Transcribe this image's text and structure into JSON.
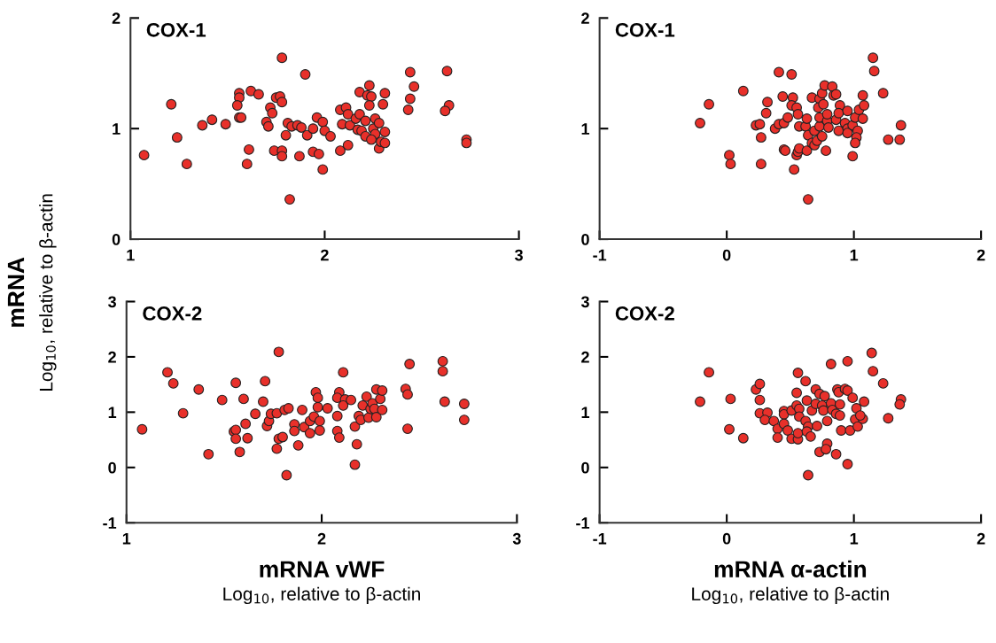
{
  "chart_data": [
    {
      "type": "scatter",
      "title": "COX-1",
      "ylabel": "mRNA\nLog$_{10}$, relative to β-actin",
      "marker": "circle",
      "grid": false,
      "xlim": [
        1,
        3
      ],
      "xticks": [
        1,
        2,
        3
      ],
      "ylim": [
        0,
        2
      ],
      "yticks": [
        0,
        1,
        2
      ],
      "series": [
        {
          "color": "#e8302a",
          "x": [
            1.07,
            1.21,
            1.24,
            1.29,
            1.37,
            1.42,
            1.49,
            1.56,
            1.56,
            1.55,
            1.56,
            1.57,
            1.61,
            1.6,
            1.62,
            1.66,
            1.7,
            1.71,
            1.72,
            1.73,
            1.75,
            1.77,
            1.78,
            1.78,
            1.74,
            1.78,
            1.78,
            1.8,
            1.81,
            1.83,
            1.86,
            1.88,
            1.87,
            1.82,
            1.9,
            1.91,
            1.94,
            1.94,
            1.97,
            1.96,
            1.99,
            2.0,
            1.99,
            2.03,
            2.08,
            2.12,
            2.09,
            2.13,
            2.08,
            2.11,
            2.12,
            2.16,
            2.18,
            2.21,
            2.17,
            2.19,
            2.21,
            2.18,
            2.22,
            2.24,
            2.23,
            2.23,
            2.25,
            2.26,
            2.28,
            2.26,
            2.24,
            2.28,
            2.29,
            2.31,
            2.31,
            2.3,
            2.31,
            2.43,
            2.44,
            2.46,
            2.44,
            2.63,
            2.64,
            2.62,
            2.73,
            2.73
          ],
          "values": [
            0.76,
            1.22,
            0.92,
            0.68,
            1.03,
            1.08,
            1.04,
            1.32,
            1.28,
            1.21,
            1.1,
            1.1,
            0.81,
            0.68,
            1.34,
            1.31,
            1.06,
            1.02,
            1.19,
            1.14,
            1.28,
            1.29,
            1.24,
            1.64,
            0.8,
            0.8,
            0.75,
            0.94,
            1.05,
            1.02,
            1.03,
            1.01,
            0.75,
            0.36,
            1.49,
            0.94,
            1.0,
            0.79,
            0.77,
            1.1,
            1.06,
            0.98,
            0.63,
            0.93,
            0.8,
            0.85,
            1.04,
            1.03,
            1.17,
            1.19,
            1.13,
            1.09,
            1.13,
            1.07,
            0.99,
            0.98,
            0.93,
            1.33,
            1.3,
            1.29,
            1.39,
            1.21,
            1.0,
            1.09,
            1.05,
            0.95,
            0.9,
            0.82,
            0.88,
            0.87,
            0.97,
            1.22,
            1.32,
            1.17,
            1.27,
            1.38,
            1.51,
            1.52,
            1.21,
            1.16,
            0.9,
            0.87
          ]
        }
      ]
    },
    {
      "type": "scatter",
      "title": "COX-1",
      "marker": "circle",
      "grid": false,
      "xlim": [
        -1,
        2
      ],
      "xticks": [
        -1,
        0,
        1,
        2
      ],
      "ylim": [
        0,
        2
      ],
      "yticks": [
        0,
        1,
        2
      ],
      "series": [
        {
          "color": "#e8302a",
          "x": [
            -0.21,
            -0.14,
            0.13,
            0.02,
            0.03,
            0.23,
            0.26,
            0.27,
            0.27,
            0.31,
            0.32,
            0.38,
            0.41,
            0.45,
            0.48,
            0.41,
            0.51,
            0.44,
            0.52,
            0.51,
            0.55,
            0.56,
            0.45,
            0.46,
            0.53,
            0.57,
            0.62,
            0.63,
            0.55,
            0.56,
            0.57,
            0.63,
            0.64,
            0.64,
            0.67,
            0.69,
            0.71,
            0.69,
            0.73,
            0.75,
            0.78,
            0.67,
            0.73,
            0.72,
            0.76,
            0.75,
            0.77,
            0.83,
            0.84,
            0.86,
            0.73,
            0.79,
            0.79,
            0.8,
            0.86,
            0.89,
            0.88,
            0.88,
            0.95,
            0.93,
            0.95,
            0.95,
            0.99,
            1.03,
            1.02,
            1.01,
            0.99,
            1.01,
            1.04,
            1.07,
            1.08,
            1.07,
            1.15,
            1.16,
            1.23,
            1.27,
            1.36,
            1.37
          ],
          "values": [
            1.05,
            1.22,
            1.34,
            0.76,
            0.68,
            1.03,
            1.04,
            0.92,
            0.68,
            1.14,
            1.24,
            1.0,
            1.04,
            1.05,
            1.1,
            1.51,
            1.49,
            1.29,
            1.28,
            1.21,
            1.19,
            1.13,
            0.81,
            0.8,
            0.63,
            1.02,
            1.02,
            1.09,
            0.76,
            0.79,
            0.82,
            0.8,
            0.36,
            0.94,
            0.87,
            0.85,
            0.89,
            0.98,
            1.02,
            0.93,
            0.8,
            1.28,
            1.27,
            1.19,
            1.22,
            1.32,
            1.39,
            1.38,
            1.3,
            1.31,
            1.1,
            1.07,
            1.13,
            1.01,
            1.08,
            1.21,
            1.14,
            0.98,
            1.16,
            1.05,
            1.0,
            0.96,
            1.03,
            0.98,
            0.92,
            0.87,
            0.75,
            1.1,
            1.17,
            1.09,
            1.21,
            1.3,
            1.64,
            1.52,
            1.32,
            0.9,
            0.9,
            1.03
          ]
        }
      ]
    },
    {
      "type": "scatter",
      "title": "COX-2",
      "xlabel": "mRNA vWF\nLog$_{10}$, relative to β-actin",
      "marker": "circle",
      "grid": false,
      "xlim": [
        1,
        3
      ],
      "xticks": [
        1,
        2,
        3
      ],
      "ylim": [
        -1,
        3
      ],
      "yticks": [
        -1,
        0,
        1,
        2,
        3
      ],
      "series": [
        {
          "color": "#e8302a",
          "x": [
            1.08,
            1.21,
            1.24,
            1.29,
            1.37,
            1.42,
            1.49,
            1.56,
            1.55,
            1.56,
            1.56,
            1.58,
            1.6,
            1.61,
            1.62,
            1.66,
            1.7,
            1.71,
            1.72,
            1.73,
            1.74,
            1.77,
            1.78,
            1.77,
            1.78,
            1.8,
            1.82,
            1.81,
            1.83,
            1.86,
            1.86,
            1.88,
            1.9,
            1.91,
            1.94,
            1.94,
            1.96,
            1.97,
            1.98,
            1.98,
            1.99,
            1.99,
            2.03,
            2.08,
            2.08,
            2.09,
            2.09,
            2.08,
            2.11,
            2.12,
            2.11,
            2.15,
            2.17,
            2.18,
            2.17,
            2.19,
            2.2,
            2.21,
            2.23,
            2.24,
            2.25,
            2.26,
            2.27,
            2.28,
            2.3,
            2.28,
            2.31,
            2.31,
            2.43,
            2.44,
            2.44,
            2.45,
            2.62,
            2.62,
            2.63,
            2.73,
            2.73
          ],
          "values": [
            0.69,
            1.72,
            1.52,
            0.98,
            1.41,
            0.24,
            1.22,
            1.53,
            0.65,
            0.68,
            0.52,
            0.28,
            1.24,
            0.79,
            0.53,
            0.97,
            1.19,
            1.56,
            0.75,
            0.84,
            0.97,
            0.98,
            2.09,
            0.34,
            0.52,
            0.55,
            -0.14,
            1.04,
            1.07,
            0.78,
            0.66,
            0.4,
            1.04,
            0.73,
            0.84,
            0.62,
            0.92,
            1.36,
            1.26,
            1.09,
            0.84,
            0.67,
            1.07,
            0.93,
            0.66,
            0.54,
            1.36,
            1.26,
            1.72,
            1.23,
            1.12,
            1.22,
            0.74,
            0.42,
            0.05,
            0.93,
            0.86,
            1.12,
            1.28,
            0.9,
            1.06,
            1.16,
            1.06,
            0.91,
            1.24,
            1.41,
            1.39,
            1.04,
            1.42,
            1.32,
            0.7,
            1.87,
            1.92,
            1.74,
            1.19,
            1.15,
            0.86
          ]
        }
      ]
    },
    {
      "type": "scatter",
      "title": "COX-2",
      "xlabel": "mRNA α-actin\nLog$_{10}$, relative to β-actin",
      "marker": "circle",
      "grid": false,
      "xlim": [
        -1,
        2
      ],
      "xticks": [
        -1,
        0,
        1,
        2
      ],
      "ylim": [
        -1,
        3
      ],
      "yticks": [
        -1,
        0,
        1,
        2,
        3
      ],
      "series": [
        {
          "color": "#e8302a",
          "x": [
            -0.21,
            -0.14,
            0.03,
            0.02,
            0.13,
            0.23,
            0.26,
            0.26,
            0.26,
            0.32,
            0.3,
            0.37,
            0.4,
            0.4,
            0.45,
            0.45,
            0.45,
            0.48,
            0.51,
            0.56,
            0.56,
            0.51,
            0.55,
            0.57,
            0.57,
            0.55,
            0.56,
            0.62,
            0.63,
            0.62,
            0.64,
            0.63,
            0.66,
            0.64,
            0.67,
            0.7,
            0.7,
            0.73,
            0.77,
            0.75,
            0.76,
            0.71,
            0.79,
            0.82,
            0.83,
            0.86,
            0.89,
            0.89,
            0.87,
            0.88,
            0.93,
            0.95,
            0.99,
            0.82,
            0.95,
            0.9,
            0.97,
            0.79,
            0.73,
            0.78,
            0.86,
            0.95,
            1.02,
            1.01,
            1.03,
            1.07,
            1.08,
            1.05,
            1.14,
            1.15,
            1.23,
            1.27,
            1.37,
            1.36
          ],
          "values": [
            1.19,
            1.72,
            1.24,
            0.69,
            0.53,
            1.41,
            1.51,
            1.22,
            0.98,
            0.99,
            0.86,
            0.84,
            0.7,
            0.54,
            1.02,
            0.96,
            0.79,
            0.67,
            0.52,
            0.51,
            0.62,
            1.03,
            1.12,
            1.06,
            0.92,
            1.35,
            1.71,
            1.56,
            1.21,
            0.84,
            0.74,
            0.65,
            0.56,
            -0.14,
            1.03,
            1.15,
            1.41,
            1.33,
            1.29,
            1.12,
            1.03,
            0.75,
            0.84,
            1.16,
            1.04,
            0.97,
            0.94,
            1.14,
            1.41,
            1.36,
            1.42,
            1.39,
            1.26,
            1.87,
            1.92,
            0.67,
            0.67,
            0.43,
            0.28,
            0.33,
            0.24,
            0.06,
            1.07,
            0.87,
            0.74,
            0.88,
            1.19,
            0.94,
            2.07,
            1.74,
            1.52,
            0.89,
            1.23,
            1.14
          ]
        }
      ]
    }
  ]
}
